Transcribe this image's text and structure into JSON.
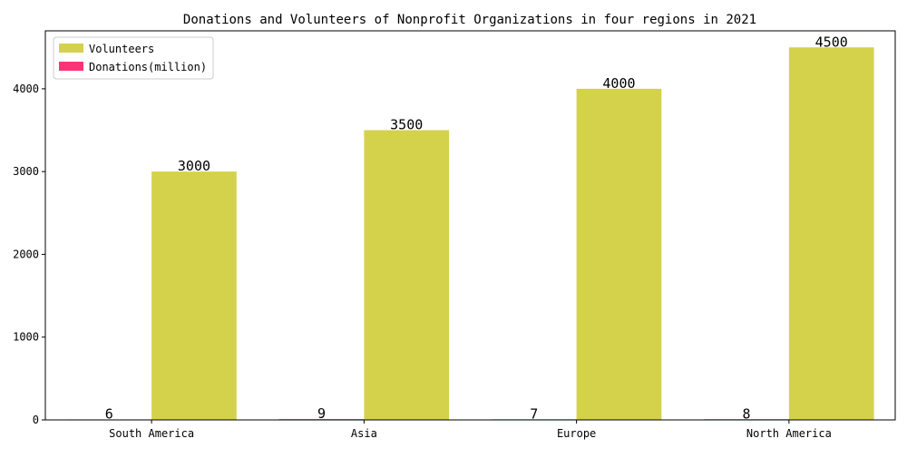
{
  "chart_data": {
    "type": "bar",
    "title": "Donations and Volunteers of Nonprofit Organizations in four regions in 2021",
    "xlabel": "",
    "ylabel": "",
    "categories": [
      "South America",
      "Asia",
      "Europe",
      "North America"
    ],
    "series": [
      {
        "name": "Donations(million)",
        "values": [
          6,
          9,
          7,
          8
        ],
        "color": "#ff3377"
      },
      {
        "name": "Volunteers",
        "values": [
          3000,
          3500,
          4000,
          4500
        ],
        "color": "#d4d24a"
      }
    ],
    "ylim": [
      0,
      4700
    ],
    "yticks": [
      0,
      1000,
      2000,
      3000,
      4000
    ],
    "grid": false,
    "legend": {
      "position": "top-left",
      "order": [
        "Volunteers",
        "Donations(million)"
      ]
    }
  }
}
